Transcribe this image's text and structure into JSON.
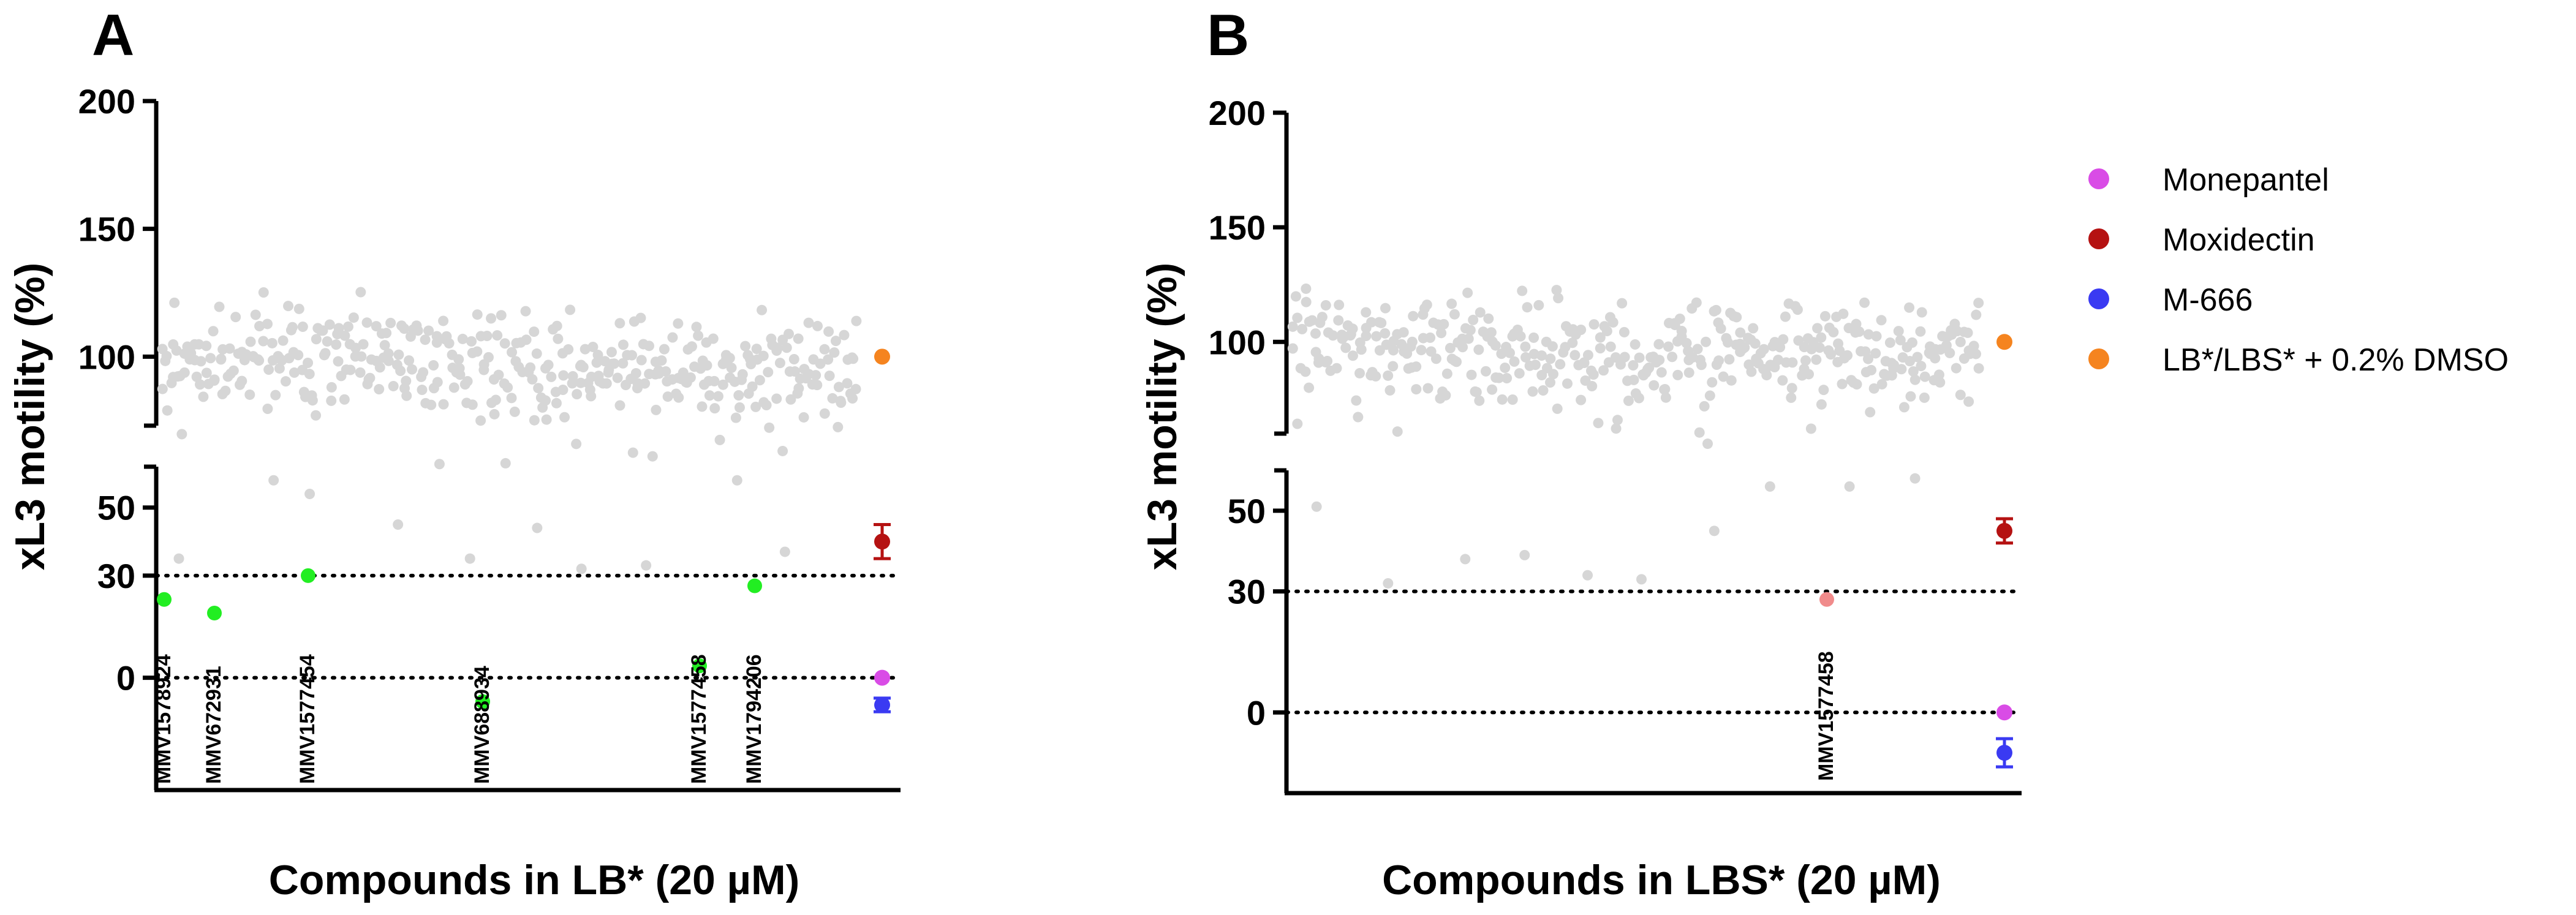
{
  "legend": [
    {
      "label": "Monepantel",
      "color": "#d94ce6"
    },
    {
      "label": "Moxidectin",
      "color": "#b51212"
    },
    {
      "label": "M-666",
      "color": "#3a3af2"
    },
    {
      "label": "LB*/LBS* + 0.2% DMSO",
      "color": "#f5841f"
    }
  ],
  "chart_data": [
    {
      "panel": "A",
      "type": "scatter",
      "xlabel": "Compounds in LB* (20 µM)",
      "ylabel": "xL3 motility (%)",
      "y_axis_break": true,
      "upper_ylim": [
        73,
        200
      ],
      "upper_yticks": [
        100,
        150,
        200
      ],
      "lower_ylim": [
        -33,
        62
      ],
      "lower_yticks": [
        0,
        30,
        50
      ],
      "threshold_lines": [
        30,
        0
      ],
      "n_compounds": 400,
      "screen_seed": 11,
      "screen_outliers": [
        35,
        58,
        54,
        45,
        35,
        44,
        32,
        33,
        58,
        37
      ],
      "hits": [
        {
          "compound": "MMV1578924",
          "motility": 23
        },
        {
          "compound": "MMV672931",
          "motility": 19
        },
        {
          "compound": "MMV1577454",
          "motility": 30
        },
        {
          "compound": "MMV688934",
          "motility": -7
        },
        {
          "compound": "MMV1577458",
          "motility": 3.5
        },
        {
          "compound": "MMV1794206",
          "motility": 27
        }
      ],
      "controls": [
        {
          "name": "Monepantel",
          "mean": 0,
          "error": 0
        },
        {
          "name": "Moxidectin",
          "mean": 40,
          "error": 5
        },
        {
          "name": "M-666",
          "mean": -8,
          "error": 2
        },
        {
          "name": "LB*/LBS* + 0.2% DMSO",
          "mean": 100,
          "error": 0
        }
      ]
    },
    {
      "panel": "B",
      "type": "scatter",
      "xlabel": "Compounds in LBS* (20 µM)",
      "ylabel": "xL3 motility (%)",
      "y_axis_break": true,
      "upper_ylim": [
        60,
        200
      ],
      "upper_yticks": [
        100,
        150,
        200
      ],
      "lower_ylim": [
        -20,
        60
      ],
      "lower_yticks": [
        0,
        30,
        50
      ],
      "threshold_lines": [
        30,
        0
      ],
      "n_compounds": 400,
      "screen_seed": 29,
      "screen_outliers": [
        51,
        32,
        38,
        39,
        34,
        33,
        45,
        56,
        56,
        58
      ],
      "hits": [
        {
          "compound": "MMV1577458",
          "motility": 28
        }
      ],
      "controls": [
        {
          "name": "Monepantel",
          "mean": 0,
          "error": 0
        },
        {
          "name": "Moxidectin",
          "mean": 45,
          "error": 3
        },
        {
          "name": "M-666",
          "mean": -10,
          "error": 3.5
        },
        {
          "name": "LB*/LBS* + 0.2% DMSO",
          "mean": 100,
          "error": 0
        }
      ]
    }
  ]
}
